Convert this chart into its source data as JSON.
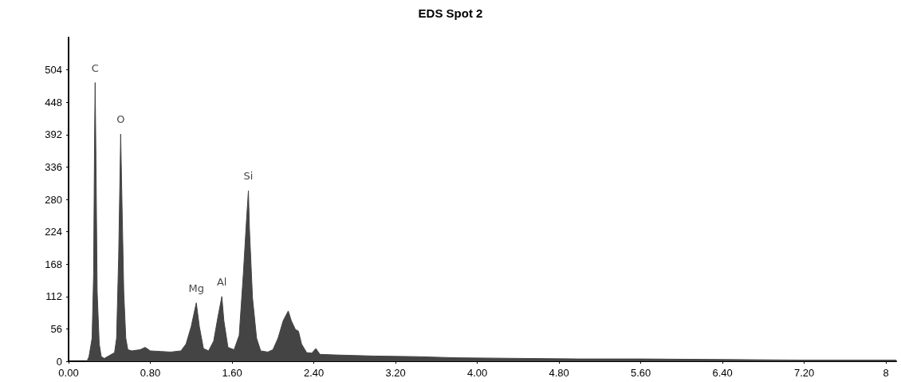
{
  "chart_data": {
    "type": "area",
    "title": "EDS Spot 2",
    "xlim": [
      0,
      8.1
    ],
    "ylim": [
      0,
      560
    ],
    "xticks": [
      {
        "value": 0,
        "label": "0.00"
      },
      {
        "value": 0.8,
        "label": "0.80"
      },
      {
        "value": 1.6,
        "label": "1.60"
      },
      {
        "value": 2.4,
        "label": "2.40"
      },
      {
        "value": 3.2,
        "label": "3.20"
      },
      {
        "value": 4,
        "label": "4.00"
      },
      {
        "value": 4.8,
        "label": "4.80"
      },
      {
        "value": 5.6,
        "label": "5.60"
      },
      {
        "value": 6.4,
        "label": "6.40"
      },
      {
        "value": 7.2,
        "label": "7.20"
      },
      {
        "value": 8,
        "label": "8"
      }
    ],
    "yticks": [
      0,
      56,
      112,
      168,
      224,
      280,
      336,
      392,
      448,
      504
    ],
    "grid": false,
    "marker": "none",
    "series": [
      {
        "color": "#444444",
        "x": [
          0.18,
          0.2,
          0.23,
          0.245,
          0.255,
          0.26,
          0.268,
          0.28,
          0.3,
          0.32,
          0.35,
          0.4,
          0.45,
          0.47,
          0.49,
          0.51,
          0.52,
          0.54,
          0.56,
          0.58,
          0.62,
          0.7,
          0.75,
          0.8,
          0.9,
          1.0,
          1.1,
          1.15,
          1.2,
          1.25,
          1.28,
          1.32,
          1.37,
          1.42,
          1.46,
          1.5,
          1.52,
          1.56,
          1.62,
          1.67,
          1.71,
          1.74,
          1.76,
          1.77,
          1.8,
          1.84,
          1.88,
          1.95,
          2.0,
          2.05,
          2.1,
          2.15,
          2.18,
          2.22,
          2.25,
          2.28,
          2.33,
          2.38,
          2.42,
          2.46,
          2.6,
          2.8,
          3.0,
          3.4,
          3.8,
          4.4,
          5.0,
          5.6,
          6.4,
          7.2,
          8.0,
          8.1
        ],
        "values": [
          0,
          8,
          40,
          150,
          400,
          482,
          350,
          120,
          30,
          8,
          5,
          10,
          15,
          40,
          180,
          393,
          300,
          120,
          40,
          20,
          18,
          20,
          24,
          18,
          17,
          16,
          18,
          30,
          60,
          101,
          60,
          22,
          18,
          35,
          75,
          112,
          70,
          24,
          20,
          45,
          150,
          240,
          295,
          230,
          110,
          40,
          18,
          16,
          20,
          40,
          70,
          87,
          70,
          55,
          52,
          30,
          15,
          14,
          22,
          12,
          11,
          10,
          9,
          8,
          6,
          5,
          4,
          4,
          3,
          2,
          2,
          2
        ]
      }
    ],
    "annotations": [
      {
        "text": "C",
        "x": 0.26,
        "y": 482
      },
      {
        "text": "O",
        "x": 0.51,
        "y": 393
      },
      {
        "text": "Mg",
        "x": 1.25,
        "y": 101
      },
      {
        "text": "Al",
        "x": 1.5,
        "y": 112
      },
      {
        "text": "Si",
        "x": 1.76,
        "y": 295
      }
    ]
  }
}
